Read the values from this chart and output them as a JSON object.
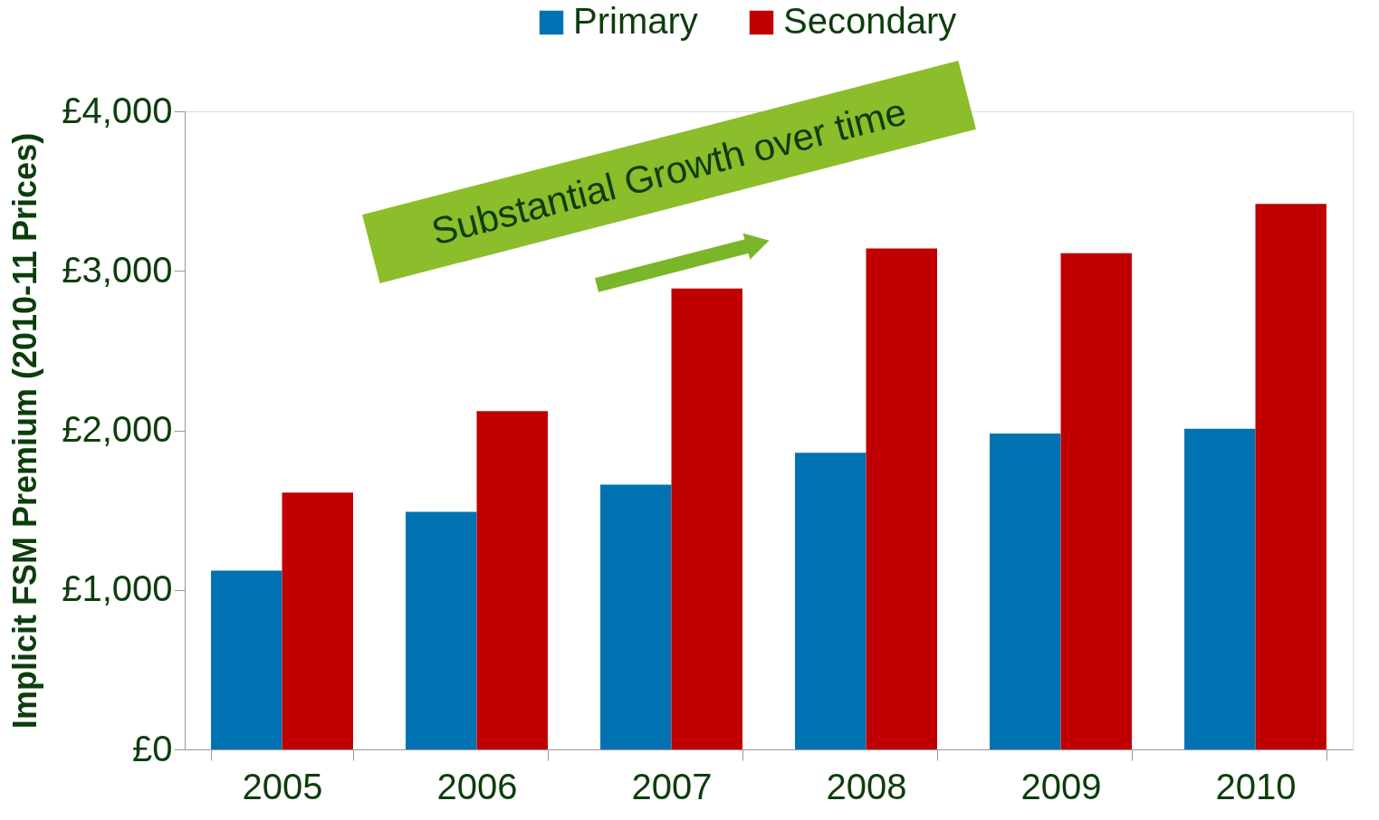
{
  "chart_data": {
    "type": "bar",
    "categories": [
      "2005",
      "2006",
      "2007",
      "2008",
      "2009",
      "2010"
    ],
    "series": [
      {
        "name": "Primary",
        "color": "#0072b2",
        "values": [
          1120,
          1490,
          1660,
          1860,
          1980,
          2010
        ]
      },
      {
        "name": "Secondary",
        "color": "#c00000",
        "values": [
          1610,
          2120,
          2890,
          3140,
          3110,
          3420
        ]
      }
    ],
    "ylabel": "Implicit FSM Premium (2010-11 Prices)",
    "ylim": [
      0,
      4000
    ],
    "yticks": [
      {
        "value": 0,
        "label": "£0"
      },
      {
        "value": 1000,
        "label": "£1,000"
      },
      {
        "value": 2000,
        "label": "£2,000"
      },
      {
        "value": 3000,
        "label": "£3,000"
      },
      {
        "value": 4000,
        "label": "£4,000"
      }
    ],
    "annotations": [
      "Substantial Growth over time"
    ],
    "legend": "top",
    "grid": false
  }
}
